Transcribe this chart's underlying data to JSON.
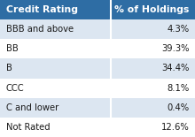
{
  "col1_header": "Credit Rating",
  "col2_header": "% of Holdings",
  "rows": [
    [
      "BBB and above",
      "4.3%"
    ],
    [
      "BB",
      "39.3%"
    ],
    [
      "B",
      "34.4%"
    ],
    [
      "CCC",
      "8.1%"
    ],
    [
      "C and lower",
      "0.4%"
    ],
    [
      "Not Rated",
      "12.6%"
    ]
  ],
  "header_bg": "#2E6DA4",
  "header_fg": "#ffffff",
  "row_bg_odd": "#dce6f1",
  "row_bg_even": "#ffffff",
  "text_color": "#1a1a1a",
  "border_color": "#ffffff",
  "figsize": [
    2.2,
    1.55
  ],
  "dpi": 100
}
